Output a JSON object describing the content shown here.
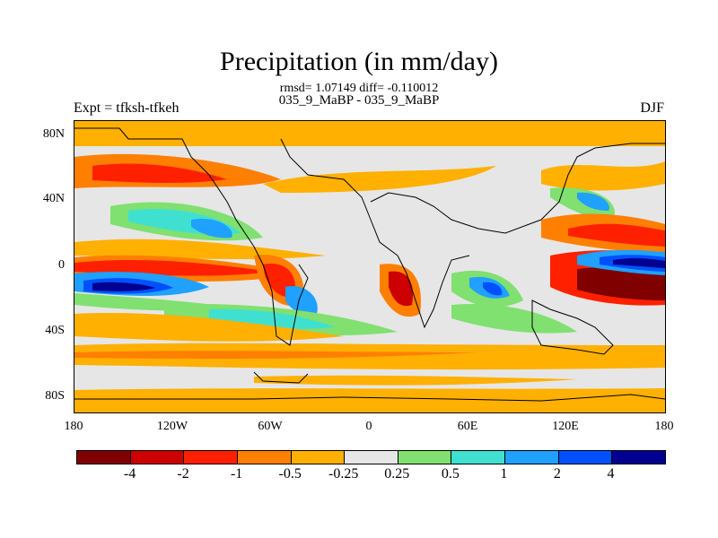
{
  "title": "Precipitation (in mm/day)",
  "stats_line": "rmsd= 1.07149 diff= -0.110012",
  "experiment_line": "035_9_MaBP - 035_9_MaBP",
  "expt_label": "Expt = tfksh-tfkeh",
  "season": "DJF",
  "y_ticks": [
    "80N",
    "40N",
    "0",
    "40S",
    "80S"
  ],
  "x_ticks": [
    "180",
    "120W",
    "60W",
    "0",
    "60E",
    "120E",
    "180"
  ],
  "colorbar": {
    "colors": [
      "#800000",
      "#cc0000",
      "#ff2000",
      "#ff7f00",
      "#ffb000",
      "#e6e6e6",
      "#80e070",
      "#40e0d0",
      "#20a0ff",
      "#0050ff",
      "#000090"
    ],
    "labels": [
      "-4",
      "-2",
      "-1",
      "-0.5",
      "-0.25",
      "0.25",
      "0.5",
      "1",
      "2",
      "4"
    ]
  }
}
